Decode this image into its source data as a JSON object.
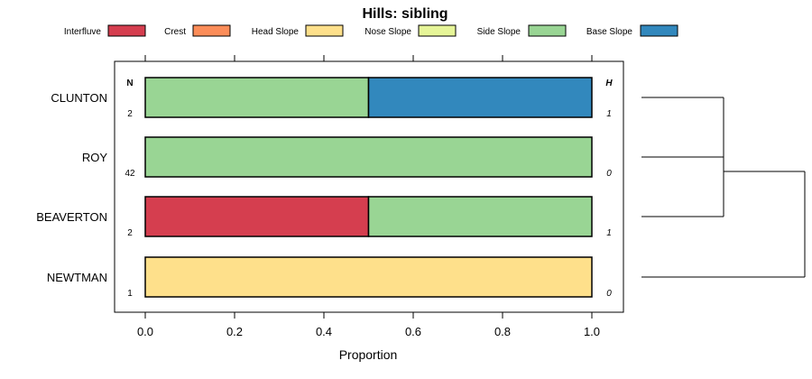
{
  "chart_data": {
    "type": "bar",
    "orientation": "horizontal",
    "stacked": true,
    "title": "Hills: sibling",
    "xlabel": "Proportion",
    "ylabel": "",
    "xlim": [
      0,
      1
    ],
    "x_ticks": [
      "0.0",
      "0.2",
      "0.4",
      "0.6",
      "0.8",
      "1.0"
    ],
    "x_tick_values": [
      0,
      0.2,
      0.4,
      0.6,
      0.8,
      1.0
    ],
    "legend_position": "top",
    "legend": [
      {
        "name": "Interfluve",
        "color": "#D53E4F"
      },
      {
        "name": "Crest",
        "color": "#FC8D59"
      },
      {
        "name": "Head Slope",
        "color": "#FEE08B"
      },
      {
        "name": "Nose Slope",
        "color": "#E6F598"
      },
      {
        "name": "Side Slope",
        "color": "#99D594"
      },
      {
        "name": "Base Slope",
        "color": "#3288BD"
      }
    ],
    "n_header": "N",
    "h_header": "H",
    "categories": [
      "CLUNTON",
      "ROY",
      "BEAVERTON",
      "NEWTMAN"
    ],
    "n_values": [
      "2",
      "42",
      "2",
      "1"
    ],
    "h_values": [
      "1",
      "0",
      "1",
      "0"
    ],
    "series": [
      {
        "name": "Interfluve",
        "values": [
          0,
          0,
          0.5,
          0
        ]
      },
      {
        "name": "Crest",
        "values": [
          0,
          0,
          0,
          0
        ]
      },
      {
        "name": "Head Slope",
        "values": [
          0,
          0,
          0,
          1
        ]
      },
      {
        "name": "Nose Slope",
        "values": [
          0,
          0,
          0,
          0
        ]
      },
      {
        "name": "Side Slope",
        "values": [
          0.5,
          1,
          0.5,
          0
        ]
      },
      {
        "name": "Base Slope",
        "values": [
          0.5,
          0,
          0,
          0
        ]
      }
    ],
    "dendrogram": {
      "merges": [
        {
          "members": [
            "CLUNTON",
            "ROY",
            "BEAVERTON"
          ]
        },
        {
          "members": [
            "CLUNTON+ROY+BEAVERTON",
            "NEWTMAN"
          ]
        }
      ]
    }
  }
}
